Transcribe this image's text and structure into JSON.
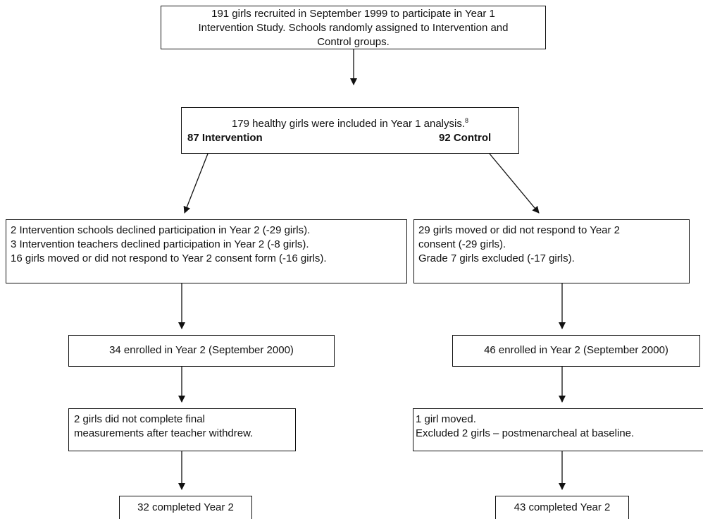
{
  "boxes": {
    "recruit": {
      "lines": [
        "191 girls recruited in September 1999 to participate in Year 1",
        "Intervention Study. Schools randomly assigned to Intervention and",
        "Control groups."
      ]
    },
    "analysis": {
      "line": "179 healthy girls were included in Year 1 analysis.",
      "superscript": "8",
      "intervention": "87 Intervention",
      "control": "92 Control"
    },
    "left_exclusions": {
      "lines": [
        "2 Intervention schools declined participation in Year 2 (-29 girls).",
        "3 Intervention teachers declined participation in Year 2 (-8 girls).",
        "16 girls moved or did not respond to Year 2 consent form (-16 girls)."
      ]
    },
    "right_exclusions": {
      "lines": [
        "29 girls moved or did not respond to Year 2",
        "consent (-29 girls).",
        "Grade 7 girls excluded (-17 girls)."
      ]
    },
    "left_enrolled": {
      "text": "34 enrolled in Year 2 (September 2000)"
    },
    "right_enrolled": {
      "text": "46 enrolled in Year 2 (September 2000)"
    },
    "left_incomplete": {
      "lines": [
        "2 girls did not complete final",
        "measurements after teacher withdrew."
      ]
    },
    "right_incomplete": {
      "lines": [
        "1 girl moved.",
        "Excluded 2 girls – postmenarcheal at baseline."
      ]
    },
    "left_completed": {
      "text": "32 completed Year 2"
    },
    "right_completed": {
      "text": "43 completed Year 2"
    }
  }
}
